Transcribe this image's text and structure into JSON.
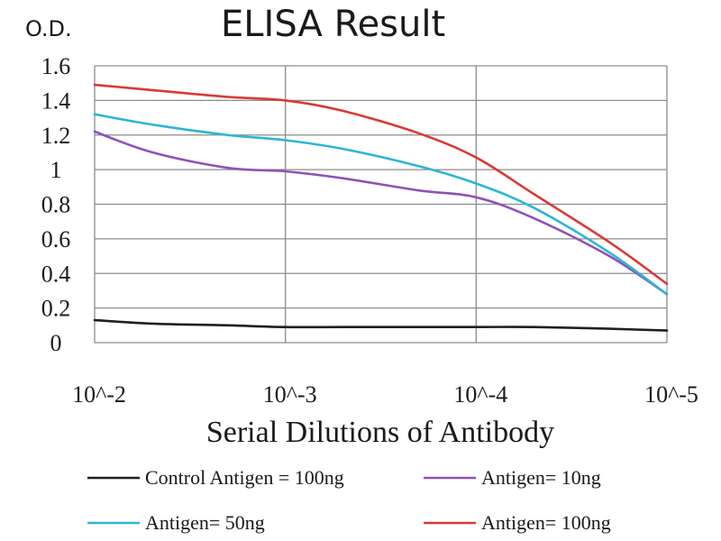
{
  "chart_data": {
    "type": "line",
    "title": "ELISA Result",
    "ylabel": "O.D.",
    "xlabel": "Serial Dilutions of Antibody",
    "x_categories": [
      "10^-2",
      "10^-3",
      "10^-4",
      "10^-5"
    ],
    "x_log_scale": true,
    "x": [
      0.01,
      0.005,
      0.002,
      0.001,
      0.0005,
      0.0002,
      0.0001,
      5e-05,
      2e-05,
      1e-05
    ],
    "ylim": [
      0,
      1.6
    ],
    "yticks": [
      0,
      0.2,
      0.4,
      0.6,
      0.8,
      1,
      1.2,
      1.4,
      1.6
    ],
    "ytick_labels": [
      "0",
      "0.2",
      "0.4",
      "0.6",
      "0.8",
      "1",
      "1.2",
      "1.4",
      "1.6"
    ],
    "grid": true,
    "legend_position": "bottom",
    "series": [
      {
        "name": "Control Antigen = 100ng",
        "color": "#1f1f1f",
        "values": [
          0.13,
          0.11,
          0.1,
          0.09,
          0.09,
          0.09,
          0.09,
          0.09,
          0.08,
          0.07
        ]
      },
      {
        "name": "Antigen= 10ng",
        "color": "#8e52b8",
        "values": [
          1.22,
          1.1,
          1.01,
          0.99,
          0.95,
          0.88,
          0.84,
          0.72,
          0.5,
          0.28
        ]
      },
      {
        "name": "Antigen= 50ng",
        "color": "#2cb6d6",
        "values": [
          1.32,
          1.26,
          1.2,
          1.17,
          1.12,
          1.02,
          0.92,
          0.78,
          0.52,
          0.28
        ]
      },
      {
        "name": "Antigen= 100ng",
        "color": "#d93a36",
        "values": [
          1.49,
          1.46,
          1.42,
          1.4,
          1.34,
          1.21,
          1.07,
          0.86,
          0.58,
          0.34
        ]
      }
    ]
  }
}
